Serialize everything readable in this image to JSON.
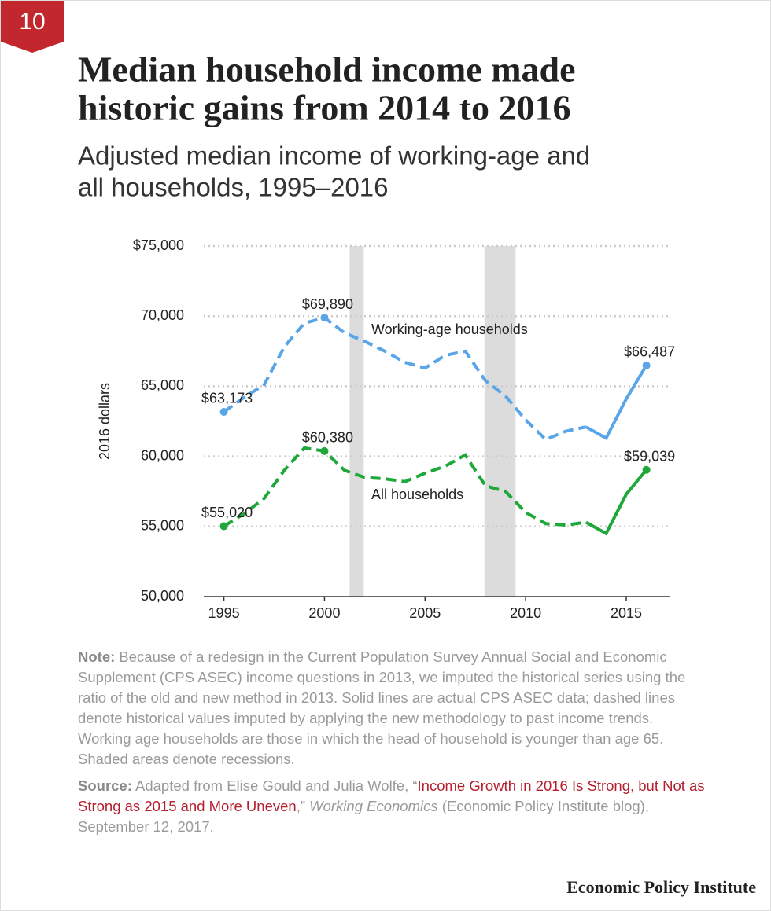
{
  "badge": "10",
  "chart_data": {
    "type": "line",
    "title": [
      "Median household income made",
      "historic gains from 2014 to 2016"
    ],
    "subtitle": [
      "Adjusted median income of working-age and",
      "all households, 1995–2016"
    ],
    "y_label": "2016 dollars",
    "x": [
      1995,
      1996,
      1997,
      1998,
      1999,
      2000,
      2001,
      2002,
      2003,
      2004,
      2005,
      2006,
      2007,
      2008,
      2009,
      2010,
      2011,
      2012,
      2013,
      2014,
      2015,
      2016
    ],
    "series": [
      {
        "name": "Working-age households",
        "color": "#5aa5e8",
        "values": [
          63173,
          64200,
          65100,
          67800,
          69500,
          69890,
          68800,
          68200,
          67500,
          66700,
          66300,
          67200,
          67500,
          65400,
          64300,
          62600,
          61200,
          61800,
          62100,
          61300,
          64100,
          66487
        ],
        "value_labels": [
          "$63,173",
          null,
          null,
          null,
          null,
          "$69,890",
          null,
          null,
          null,
          null,
          null,
          null,
          null,
          null,
          null,
          null,
          null,
          null,
          null,
          null,
          null,
          "$66,487"
        ]
      },
      {
        "name": "All households",
        "color": "#1fa83a",
        "values": [
          55020,
          55900,
          57000,
          59000,
          60600,
          60380,
          59000,
          58500,
          58400,
          58200,
          58800,
          59300,
          60100,
          57900,
          57500,
          56000,
          55200,
          55100,
          55300,
          54500,
          57300,
          59039
        ],
        "value_labels": [
          "$55,020",
          null,
          null,
          null,
          null,
          "$60,380",
          null,
          null,
          null,
          null,
          null,
          null,
          null,
          null,
          null,
          null,
          null,
          null,
          null,
          null,
          null,
          "$59,039"
        ]
      }
    ],
    "dashed_before": 2013,
    "shaded_ranges": [
      [
        2001.25,
        2001.95
      ],
      [
        2007.95,
        2009.5
      ]
    ],
    "xlim": [
      1994,
      2017.15
    ],
    "xticks": [
      1995,
      2000,
      2005,
      2010,
      2015
    ],
    "ylim": [
      50000,
      75000
    ],
    "yticks": [
      {
        "value": 50000,
        "label": "50,000"
      },
      {
        "value": 55000,
        "label": "55,000"
      },
      {
        "value": 60000,
        "label": "60,000"
      },
      {
        "value": 65000,
        "label": "65,000"
      },
      {
        "value": 70000,
        "label": "70,000"
      },
      {
        "value": 75000,
        "label": "$75,000"
      }
    ],
    "grid": true
  },
  "note": {
    "label": "Note:",
    "text": " Because of a redesign in the Current Population Survey Annual Social and Economic Supplement (CPS ASEC) income questions in 2013, we imputed the historical series using the ratio of the old and new method in 2013. Solid lines are actual CPS ASEC data; dashed lines denote historical values imputed by applying the new methodology to past income trends. Working age households are those in which the head of household is younger than age 65. Shaded areas denote recessions."
  },
  "source": {
    "label": "Source:",
    "text1": " Adapted from Elise Gould and Julia Wolfe, “",
    "link": "Income Growth in 2016 Is Strong, but Not as Strong as 2015 and More Uneven",
    "text2": ",” ",
    "italic": "Working Economics",
    "text3": " (Economic Policy Institute blog), September 12, 2017."
  },
  "footer": "Economic Policy Institute"
}
